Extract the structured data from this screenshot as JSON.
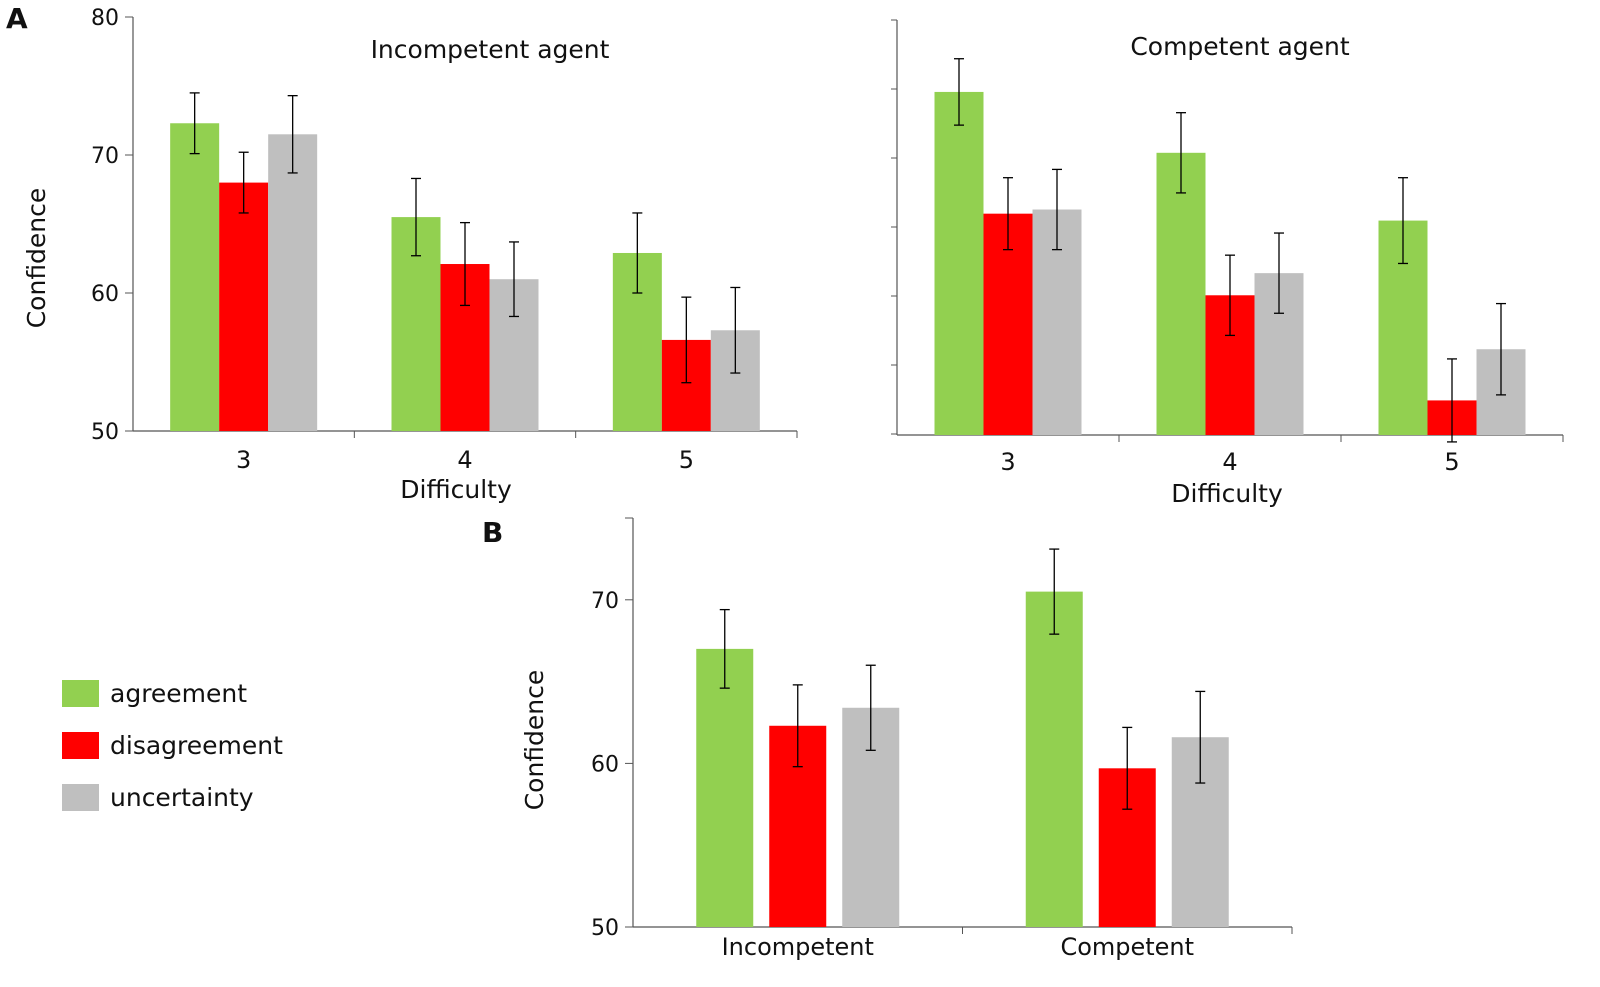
{
  "panel_labels": {
    "a": "A",
    "b": "B"
  },
  "colors": {
    "agreement": "#92d050",
    "disagreement": "#ff0000",
    "uncertainty": "#bfbfbf",
    "axis": "#555555",
    "error": "#000000"
  },
  "legend": [
    {
      "key": "agreement",
      "label": "agreement"
    },
    {
      "key": "disagreement",
      "label": "disagreement"
    },
    {
      "key": "uncertainty",
      "label": "uncertainty"
    }
  ],
  "chart_data": [
    {
      "id": "a-left",
      "type": "bar",
      "title": "Incompetent agent",
      "xlabel": "Difficulty",
      "ylabel": "Confidence",
      "ylim": [
        50,
        80
      ],
      "yticks": [
        "50",
        "60",
        "70",
        "80"
      ],
      "categories": [
        "3",
        "4",
        "5"
      ],
      "series": [
        {
          "name": "agreement",
          "values": [
            72.3,
            65.5,
            62.9
          ],
          "errors": [
            2.2,
            2.8,
            2.9
          ]
        },
        {
          "name": "disagreement",
          "values": [
            68.0,
            62.1,
            56.6
          ],
          "errors": [
            2.2,
            3.0,
            3.1
          ]
        },
        {
          "name": "uncertainty",
          "values": [
            71.5,
            61.0,
            57.3
          ],
          "errors": [
            2.8,
            2.7,
            3.1
          ]
        }
      ]
    },
    {
      "id": "a-right",
      "type": "bar",
      "title": "Competent agent",
      "xlabel": "Difficulty",
      "ylabel": "",
      "ylim": [
        50,
        80
      ],
      "yticks": [],
      "categories": [
        "3",
        "4",
        "5"
      ],
      "series": [
        {
          "name": "agreement",
          "values": [
            74.8,
            70.4,
            65.5
          ],
          "errors": [
            2.4,
            2.9,
            3.1
          ]
        },
        {
          "name": "disagreement",
          "values": [
            66.0,
            60.1,
            52.5
          ],
          "errors": [
            2.6,
            2.9,
            3.0
          ]
        },
        {
          "name": "uncertainty",
          "values": [
            66.3,
            61.7,
            56.2
          ],
          "errors": [
            2.9,
            2.9,
            3.3
          ]
        }
      ]
    },
    {
      "id": "b",
      "type": "bar",
      "title": "",
      "xlabel": "",
      "ylabel": "Confidence",
      "ylim": [
        50,
        75
      ],
      "yticks": [
        "50",
        "60",
        "70"
      ],
      "categories": [
        "Incompetent",
        "Competent"
      ],
      "series": [
        {
          "name": "agreement",
          "values": [
            67.0,
            70.5
          ],
          "errors": [
            2.4,
            2.6
          ]
        },
        {
          "name": "disagreement",
          "values": [
            62.3,
            59.7
          ],
          "errors": [
            2.5,
            2.5
          ]
        },
        {
          "name": "uncertainty",
          "values": [
            63.4,
            61.6
          ],
          "errors": [
            2.6,
            2.8
          ]
        }
      ]
    }
  ]
}
